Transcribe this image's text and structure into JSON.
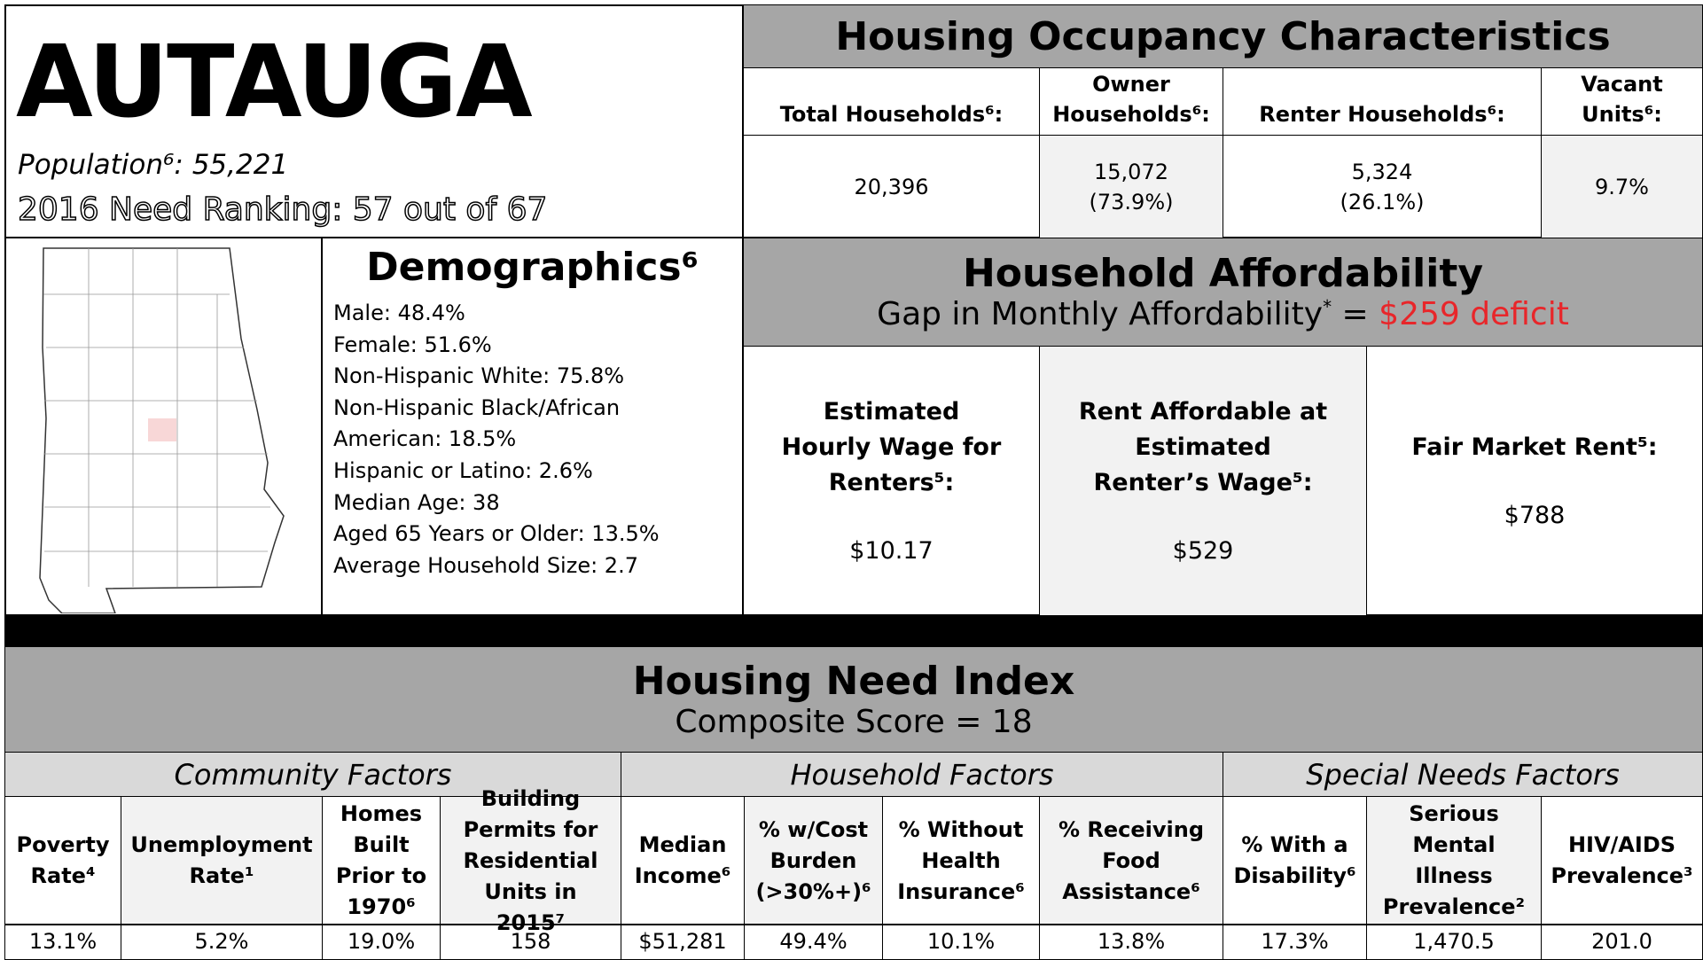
{
  "county": "AUTAUGA",
  "population": "Population⁶: 55,221",
  "need_ranking": "2016 Need Ranking: 57 out of 67",
  "occupancy": {
    "title": "Housing Occupancy Characteristics",
    "columns": [
      {
        "label": "Total Households⁶:",
        "value": [
          "20,396"
        ]
      },
      {
        "label": "Owner Households⁶:",
        "value": [
          "15,072",
          "(73.9%)"
        ]
      },
      {
        "label": "Renter Households⁶:",
        "value": [
          "5,324",
          "(26.1%)"
        ]
      },
      {
        "label": "Vacant Units⁶:",
        "value": [
          "9.7%"
        ]
      }
    ]
  },
  "demographics": {
    "title": "Demographics⁶",
    "items": [
      "Male: 48.4%",
      "Female: 51.6%",
      "Non-Hispanic White: 75.8%",
      "Non-Hispanic Black/African",
      "American: 18.5%",
      "Hispanic or Latino: 2.6%",
      "Median Age: 38",
      "Aged 65 Years or Older: 13.5%",
      "Average Household Size: 2.7"
    ]
  },
  "affordability": {
    "title": "Household Affordability",
    "gap_label": "Gap in Monthly Affordability",
    "gap_note": "*",
    "gap_equals": "=",
    "gap_value": "$259 deficit",
    "boxes": [
      {
        "label": "Estimated Hourly Wage for Renters⁵:",
        "value": "$10.17"
      },
      {
        "label": "Rent Affordable at Estimated Renter’s Wage⁵:",
        "value": "$529"
      },
      {
        "label": "Fair Market Rent⁵:",
        "value": "$788"
      }
    ]
  },
  "need_index": {
    "title": "Housing Need Index",
    "composite": "Composite Score = 18",
    "groups": [
      "Community Factors",
      "Household Factors",
      "Special Needs Factors"
    ],
    "columns": [
      {
        "header": "Poverty Rate⁴",
        "value": "13.1%"
      },
      {
        "header": "Unemployment Rate¹",
        "value": "5.2%"
      },
      {
        "header": "Homes Built Prior to 1970⁶",
        "value": "19.0%"
      },
      {
        "header": "Building Permits for Residential Units in 2015⁷",
        "value": "158"
      },
      {
        "header": "Median Income⁶",
        "value": "$51,281"
      },
      {
        "header": "% w/Cost Burden (>30%+)⁶",
        "value": "49.4%"
      },
      {
        "header": "% Without Health Insurance⁶",
        "value": "10.1%"
      },
      {
        "header": "% Receiving Food Assistance⁶",
        "value": "13.8%"
      },
      {
        "header": "% With a Disability⁶",
        "value": "17.3%"
      },
      {
        "header": "Serious Mental Illness Prevalence²",
        "value": "1,470.5"
      },
      {
        "header": "HIV/AIDS Prevalence³",
        "value": "201.0"
      }
    ]
  }
}
